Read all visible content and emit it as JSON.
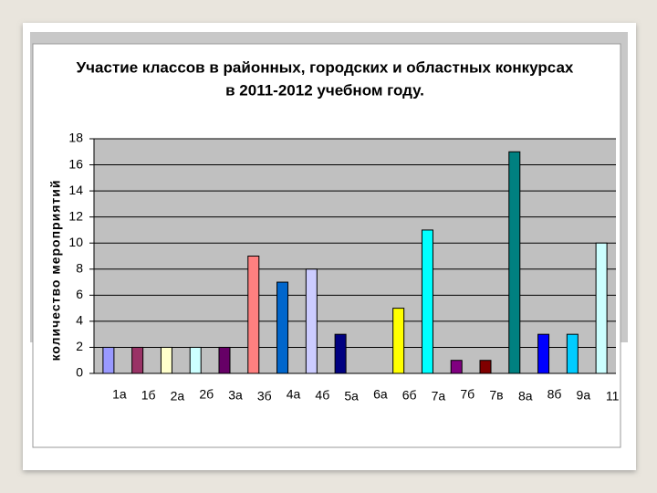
{
  "chart_data": {
    "type": "bar",
    "title": [
      "Участие классов в районных, городских и областных конкурсах",
      "в 2011-2012 учебном году."
    ],
    "y_label": "количество мероприятий",
    "categories": [
      "1а",
      "1б",
      "2а",
      "2б",
      "3а",
      "3б",
      "4а",
      "4б",
      "5а",
      "6а",
      "6б",
      "7а",
      "7б",
      "7в",
      "8а",
      "8б",
      "9а",
      "11"
    ],
    "values": [
      2,
      2,
      2,
      2,
      2,
      9,
      7,
      8,
      3,
      0,
      5,
      11,
      1,
      1,
      17,
      3,
      3,
      10
    ],
    "colors": [
      "#9999ff",
      "#993366",
      "#ffffcc",
      "#ccffff",
      "#660066",
      "#ff8080",
      "#0066cc",
      "#ccccff",
      "#000080",
      "#ff00ff",
      "#ffff00",
      "#00ffff",
      "#800080",
      "#800000",
      "#008080",
      "#0000ff",
      "#00ccff",
      "#ccffff"
    ],
    "ylim": [
      0,
      18
    ],
    "yticks": [
      0,
      2,
      4,
      6,
      8,
      10,
      12,
      14,
      16,
      18
    ],
    "grid": true
  }
}
